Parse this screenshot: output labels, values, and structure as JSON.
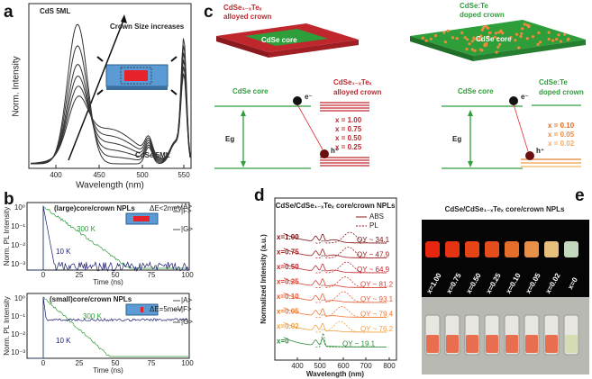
{
  "panel_a": {
    "label": "a",
    "y_label": "Norm. Intensity",
    "x_label": "Wavelength (nm)",
    "x_ticks": [
      "400",
      "450",
      "500",
      "550"
    ],
    "annotations": [
      "CdS 5ML",
      "Crown Size increases",
      "CdSe 5ML"
    ]
  },
  "panel_b": {
    "label": "b",
    "top": {
      "title": "(large)core/crown NPLs",
      "curves": [
        "300 K",
        "10 K"
      ],
      "inset": [
        "ΔE<2meV",
        "|A>",
        "|F>",
        "|G>"
      ],
      "y_label": "Norm. PL Intensity",
      "y_ticks": [
        "10⁰",
        "10⁻¹",
        "10⁻²",
        "10⁻³"
      ],
      "x_ticks": [
        "0",
        "25",
        "50",
        "75",
        "100"
      ],
      "x_label": "Time (ns)"
    },
    "bottom": {
      "title": "(small)core/crown NPLs",
      "curves": [
        "300 K",
        "10 K"
      ],
      "inset": [
        "ΔE=5meV",
        "|A>",
        "|F>",
        "|G>"
      ],
      "y_label": "Norm. PL Intensity",
      "y_ticks": [
        "10⁰",
        "10⁻¹",
        "10⁻²",
        "10⁻³"
      ],
      "x_ticks": [
        "0",
        "25",
        "50",
        "75",
        "100"
      ],
      "x_label": "Time (ns)"
    }
  },
  "panel_c": {
    "label": "c",
    "alloyed": {
      "crown_title": [
        "CdSe₁₋ₓTeₓ",
        "alloyed crown"
      ],
      "core": "CdSe core",
      "diagram_core": "CdSe core",
      "diagram_crown": [
        "CdSe₁₋ₓTeₓ",
        "alloyed crown"
      ],
      "electron": "e⁻",
      "hole": "h⁺",
      "gap": "Eg",
      "levels": [
        "x = 1.00",
        "x = 0.75",
        "x = 0.50",
        "x = 0.25"
      ]
    },
    "doped": {
      "crown_title": [
        "CdSe:Te",
        "doped crown"
      ],
      "core": "CdSe core",
      "diagram_core": "CdSe core",
      "diagram_crown": [
        "CdSe:Te",
        "doped crown"
      ],
      "electron": "e⁻",
      "hole": "h⁺",
      "gap": "Eg",
      "levels": [
        "x = 0.10",
        "x = 0.05",
        "x = 0.02"
      ]
    }
  },
  "panel_d": {
    "label": "d",
    "title": "CdSe/CdSe₁₋ₓTeₓ core/crown NPLs",
    "legend": [
      "ABS",
      "PL"
    ],
    "y_label": "Normalized Intensity (a.u.)",
    "x_label": "Wavelength (nm)",
    "x_ticks": [
      "400",
      "500",
      "600",
      "700",
      "800"
    ],
    "samples": [
      {
        "x": "x=1.00",
        "qy": "QY ~ 34.1"
      },
      {
        "x": "x=0.75",
        "qy": "QY ~ 47.9"
      },
      {
        "x": "x=0.50",
        "qy": "QY ~ 64.9"
      },
      {
        "x": "x=0.25",
        "qy": "QY ~ 81.2"
      },
      {
        "x": "x=0.10",
        "qy": "QY ~ 93.1"
      },
      {
        "x": "x=0.05",
        "qy": "QY ~ 79.4"
      },
      {
        "x": "x=0.02",
        "qy": "QY ~ 76.2"
      },
      {
        "x": "x=0",
        "qy": "QY ~ 19.1"
      }
    ]
  },
  "panel_e": {
    "label": "e",
    "title": "CdSe/CdSe₁₋ₓTeₓ core/crown NPLs",
    "vials": [
      "x=1.00",
      "x=0.75",
      "x=0.50",
      "x=0.25",
      "x=0.10",
      "x=0.05",
      "x=0.02",
      "x=0"
    ]
  }
}
